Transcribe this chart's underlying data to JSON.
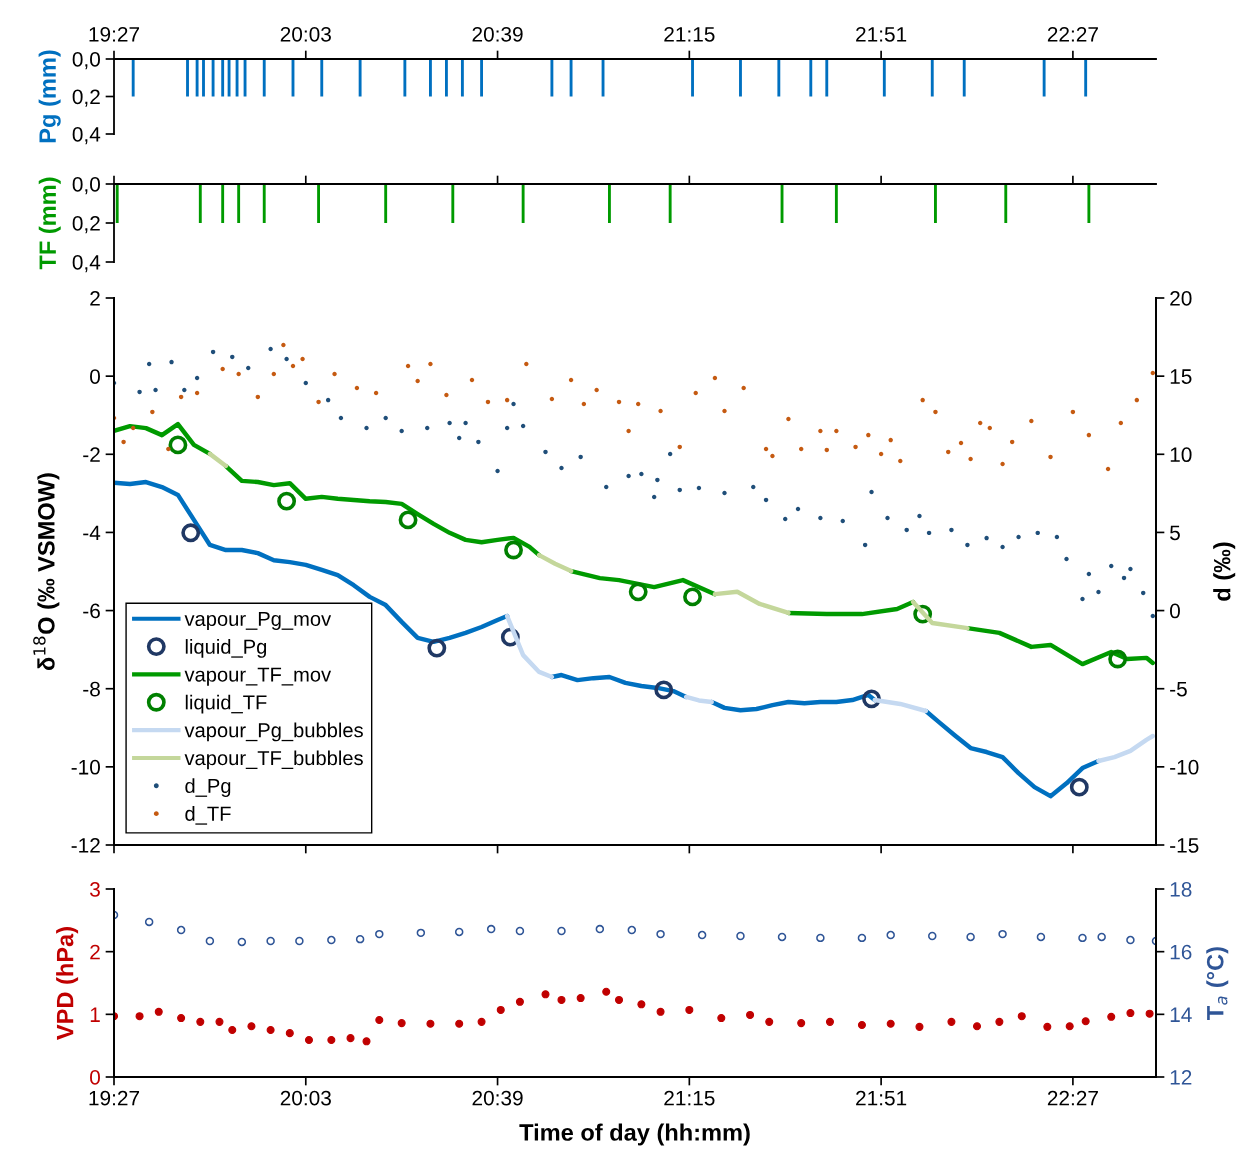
{
  "chart_data": [
    {
      "type": "bar",
      "ylabel": "Pg (mm)",
      "color": "#0070c0",
      "x": [
        19.51,
        19.68,
        19.71,
        19.73,
        19.76,
        19.79,
        19.81,
        19.835,
        19.86,
        19.92,
        20.01,
        20.1,
        20.22,
        20.36,
        20.44,
        20.49,
        20.54,
        20.6,
        20.82,
        20.88,
        20.98,
        21.26,
        21.41,
        21.53,
        21.63,
        21.68,
        21.86,
        22.01,
        22.11,
        22.36,
        22.49
      ],
      "values": [
        0.2,
        0.2,
        0.2,
        0.2,
        0.2,
        0.2,
        0.2,
        0.2,
        0.2,
        0.2,
        0.2,
        0.2,
        0.2,
        0.2,
        0.2,
        0.2,
        0.2,
        0.2,
        0.2,
        0.2,
        0.2,
        0.2,
        0.2,
        0.2,
        0.2,
        0.2,
        0.2,
        0.2,
        0.2,
        0.2,
        0.2
      ],
      "ylim": [
        0.4,
        0
      ],
      "yticks": [
        {
          "value": 0,
          "label": "0,0"
        },
        {
          "value": 0.2,
          "label": "0,2"
        },
        {
          "value": 0.4,
          "label": "0,4"
        }
      ],
      "xlim": [
        19.45,
        22.71
      ],
      "xticks": [
        {
          "value": 19.45,
          "label": "19:27"
        },
        {
          "value": 20.05,
          "label": "20:03"
        },
        {
          "value": 20.65,
          "label": "20:39"
        },
        {
          "value": 21.25,
          "label": "21:15"
        },
        {
          "value": 21.85,
          "label": "21:51"
        },
        {
          "value": 22.45,
          "label": "22:27"
        }
      ],
      "grid": false,
      "legend": false
    },
    {
      "type": "bar",
      "ylabel": "TF (mm)",
      "color": "#009a00",
      "x": [
        19.46,
        19.72,
        19.79,
        19.84,
        19.92,
        20.09,
        20.3,
        20.51,
        20.73,
        21.0,
        21.19,
        21.54,
        21.71,
        22.02,
        22.24,
        22.5
      ],
      "values": [
        0.2,
        0.2,
        0.2,
        0.2,
        0.2,
        0.2,
        0.2,
        0.2,
        0.2,
        0.2,
        0.2,
        0.2,
        0.2,
        0.2,
        0.2,
        0.2
      ],
      "ylim": [
        0.4,
        0
      ],
      "yticks": [
        {
          "value": 0,
          "label": "0,0"
        },
        {
          "value": 0.2,
          "label": "0,2"
        },
        {
          "value": 0.4,
          "label": "0,4"
        }
      ],
      "xlim": [
        19.45,
        22.71
      ],
      "xticks": [
        {
          "value": 19.45,
          "label": null
        },
        {
          "value": 20.05,
          "label": null
        },
        {
          "value": 20.65,
          "label": null
        },
        {
          "value": 21.25,
          "label": null
        },
        {
          "value": 21.85,
          "label": null
        },
        {
          "value": 22.45,
          "label": null
        }
      ],
      "tick_labels": "y",
      "grid": false,
      "legend": false
    },
    {
      "type": "line",
      "ylabel": "δ$^{18}$O (‰ VSMOW)",
      "y2label": "d (‰)",
      "xlim": [
        19.45,
        22.71
      ],
      "xticks": [
        {
          "value": 19.45,
          "label": null
        },
        {
          "value": 20.05,
          "label": null
        },
        {
          "value": 20.65,
          "label": null
        },
        {
          "value": 21.25,
          "label": null
        },
        {
          "value": 21.85,
          "label": null
        },
        {
          "value": 22.45,
          "label": null
        }
      ],
      "ylim": [
        -12,
        2
      ],
      "yticks": [
        -12,
        -10,
        -8,
        -6,
        -4,
        -2,
        0,
        2
      ],
      "y2lim": [
        -15,
        20
      ],
      "y2ticks": [
        -15,
        -10,
        -5,
        0,
        5,
        10,
        15,
        20
      ],
      "tick_labels": "y",
      "grid": false,
      "legend": "bottom left",
      "series": [
        {
          "name": "vapour_Pg_mov",
          "type": "line",
          "marker": "none",
          "line_style": "solid",
          "color": "#0070c0",
          "x": [
            19.45,
            19.5,
            19.55,
            19.6,
            19.65,
            19.7,
            19.75,
            19.8,
            19.85,
            19.9,
            19.95,
            20.0,
            20.05,
            20.1,
            20.15,
            20.2,
            20.25,
            20.3,
            20.35,
            20.4,
            20.45,
            20.5,
            20.55,
            20.6,
            20.65,
            20.68,
            20.75,
            20.82,
            20.85,
            20.9,
            20.95,
            21.0,
            21.05,
            21.1,
            21.15,
            21.2,
            21.24,
            21.28,
            21.32,
            21.36,
            21.41,
            21.46,
            21.51,
            21.56,
            21.61,
            21.66,
            21.71,
            21.76,
            21.81,
            21.83,
            21.9,
            21.99,
            22.03,
            22.08,
            22.13,
            22.18,
            22.23,
            22.28,
            22.33,
            22.38,
            22.43,
            22.48,
            22.53
          ],
          "values": [
            -2.73,
            -2.76,
            -2.71,
            -2.84,
            -3.04,
            -3.68,
            -4.32,
            -4.45,
            -4.45,
            -4.53,
            -4.71,
            -4.76,
            -4.83,
            -4.96,
            -5.09,
            -5.35,
            -5.65,
            -5.86,
            -6.29,
            -6.7,
            -6.8,
            -6.7,
            -6.57,
            -6.42,
            -6.24,
            -6.14,
            null,
            -7.7,
            -7.65,
            -7.78,
            -7.73,
            -7.7,
            -7.85,
            -7.93,
            -7.98,
            -8.06,
            -8.21,
            null,
            -8.34,
            -8.49,
            -8.55,
            -8.52,
            -8.42,
            -8.34,
            -8.37,
            -8.34,
            -8.34,
            -8.29,
            -8.16,
            -8.29,
            null,
            -8.57,
            -8.85,
            -9.19,
            -9.52,
            -9.62,
            -9.75,
            -10.16,
            -10.52,
            -10.75,
            -10.42,
            -10.03,
            -9.85
          ]
        },
        {
          "name": "liquid_Pg",
          "type": "scatter",
          "marker": "circle",
          "color": "#203864",
          "x": [
            19.69,
            20.46,
            20.69,
            21.17,
            21.82,
            22.47
          ],
          "values": [
            -4.01,
            -6.96,
            -6.68,
            -8.03,
            -8.26,
            -10.52
          ]
        },
        {
          "name": "vapour_TF_mov",
          "type": "line",
          "marker": "none",
          "line_style": "solid",
          "color": "#009a00",
          "x": [
            19.45,
            19.5,
            19.55,
            19.6,
            19.65,
            19.7,
            19.75,
            19.78,
            19.8,
            19.85,
            19.9,
            19.95,
            20.0,
            20.05,
            20.1,
            20.15,
            20.2,
            20.25,
            20.3,
            20.35,
            20.4,
            20.45,
            20.5,
            20.55,
            20.6,
            20.65,
            20.7,
            20.75,
            20.78,
            20.83,
            20.88,
            20.97,
            21.03,
            21.14,
            21.23,
            21.33,
            21.45,
            21.56,
            21.68,
            21.79,
            21.9,
            21.95,
            22.03,
            22.12,
            22.22,
            22.32,
            22.38,
            22.48,
            22.57,
            22.62,
            22.68,
            22.7
          ],
          "values": [
            -1.4,
            -1.28,
            -1.33,
            -1.51,
            -1.23,
            -1.76,
            -1.99,
            null,
            -2.3,
            -2.68,
            -2.71,
            -2.79,
            -2.74,
            -3.14,
            -3.09,
            -3.14,
            -3.17,
            -3.2,
            -3.22,
            -3.27,
            -3.53,
            -3.78,
            -4.01,
            -4.19,
            -4.25,
            -4.19,
            -4.14,
            -4.37,
            -4.58,
            null,
            -4.99,
            -5.17,
            -5.22,
            -5.4,
            -5.22,
            -5.58,
            null,
            -6.06,
            -6.09,
            -6.09,
            -5.96,
            -5.78,
            null,
            -6.45,
            -6.57,
            -6.93,
            -6.88,
            -7.37,
            -7.06,
            -7.24,
            -7.21,
            -7.34
          ]
        },
        {
          "name": "liquid_TF",
          "type": "scatter",
          "marker": "circle",
          "color": "#008000",
          "x": [
            19.65,
            19.99,
            20.37,
            20.7,
            21.09,
            21.26,
            21.98,
            22.59
          ],
          "values": [
            -1.76,
            -3.2,
            -3.68,
            -4.45,
            -5.52,
            -5.65,
            -6.09,
            -7.24
          ]
        },
        {
          "name": "vapour_Pg_bubbles",
          "type": "line",
          "marker": "none",
          "line_style": "solid",
          "color": "#c5d9f1",
          "x": [
            20.68,
            20.73,
            20.78,
            20.82,
            20.9,
            21.24,
            21.28,
            21.32,
            21.6,
            21.83,
            21.91,
            21.99,
            22.2,
            22.53,
            22.58,
            22.63,
            22.68,
            22.7
          ],
          "values": [
            -6.14,
            -7.14,
            -7.57,
            -7.7,
            null,
            -8.21,
            -8.3,
            -8.34,
            null,
            -8.29,
            -8.39,
            -8.57,
            null,
            -9.85,
            -9.75,
            -9.59,
            -9.31,
            -9.21
          ]
        },
        {
          "name": "vapour_TF_bubbles",
          "type": "line",
          "marker": "none",
          "line_style": "solid",
          "color": "#c4d79b",
          "x": [
            19.75,
            19.8,
            20.3,
            20.78,
            20.83,
            20.88,
            21.1,
            21.33,
            21.4,
            21.47,
            21.56,
            21.8,
            21.95,
            22.01,
            22.12
          ],
          "values": [
            -1.99,
            -2.3,
            null,
            -4.58,
            -4.8,
            -4.99,
            null,
            -5.58,
            -5.52,
            -5.83,
            -6.06,
            null,
            -5.78,
            -6.32,
            -6.45
          ]
        },
        {
          "name": "d_Pg",
          "type": "scatter",
          "marker": "circle",
          "axis": "y2",
          "color": "#1f4e79",
          "x": [
            19.45,
            19.53,
            19.56,
            19.58,
            19.63,
            19.67,
            19.71,
            19.76,
            19.82,
            19.87,
            19.94,
            19.99,
            20.05,
            20.12,
            20.16,
            20.24,
            20.3,
            20.35,
            20.43,
            20.5,
            20.53,
            20.55,
            20.59,
            20.65,
            20.68,
            20.7,
            20.73,
            20.8,
            20.85,
            20.91,
            20.99,
            21.06,
            21.1,
            21.14,
            21.15,
            21.19,
            21.22,
            21.28,
            21.36,
            21.45,
            21.49,
            21.55,
            21.59,
            21.66,
            21.73,
            21.8,
            21.82,
            21.87,
            21.93,
            21.97,
            22.0,
            22.07,
            22.12,
            22.18,
            22.23,
            22.28,
            22.34,
            22.4,
            22.43,
            22.48,
            22.5,
            22.53,
            22.57,
            22.61,
            22.63,
            22.67,
            22.7
          ],
          "values": [
            14.56,
            13.99,
            15.78,
            14.11,
            15.9,
            14.11,
            14.88,
            16.55,
            16.23,
            15.52,
            16.74,
            16.1,
            14.56,
            13.47,
            12.32,
            11.68,
            12.32,
            11.49,
            11.68,
            12.0,
            11.04,
            12.0,
            10.79,
            8.93,
            11.68,
            13.22,
            11.81,
            10.15,
            9.12,
            9.83,
            7.91,
            8.61,
            8.74,
            7.27,
            8.36,
            10.02,
            7.72,
            7.84,
            7.52,
            7.91,
            7.08,
            5.86,
            6.5,
            5.92,
            5.73,
            4.2,
            7.59,
            5.92,
            5.16,
            6.05,
            4.97,
            5.16,
            4.2,
            4.64,
            4.07,
            4.71,
            4.97,
            4.71,
            3.3,
            0.74,
            2.34,
            1.19,
            2.85,
            2.09,
            2.66,
            1.13,
            -0.35
          ]
        },
        {
          "name": "d_TF",
          "type": "scatter",
          "marker": "circle",
          "axis": "y2",
          "color": "#c55a11",
          "x": [
            19.45,
            19.48,
            19.51,
            19.57,
            19.62,
            19.66,
            19.71,
            19.79,
            19.84,
            19.9,
            19.95,
            19.98,
            20.01,
            20.04,
            20.09,
            20.14,
            20.21,
            20.27,
            20.37,
            20.4,
            20.44,
            20.49,
            20.57,
            20.62,
            20.68,
            20.74,
            20.82,
            20.88,
            20.92,
            20.96,
            21.03,
            21.06,
            21.09,
            21.16,
            21.22,
            21.27,
            21.33,
            21.36,
            21.42,
            21.49,
            21.51,
            21.56,
            21.6,
            21.66,
            21.68,
            21.71,
            21.77,
            21.81,
            21.85,
            21.88,
            21.91,
            21.98,
            22.02,
            22.06,
            22.1,
            22.13,
            22.16,
            22.19,
            22.23,
            22.26,
            22.32,
            22.38,
            22.45,
            22.5,
            22.56,
            22.6,
            22.65,
            22.7
          ],
          "values": [
            12.32,
            10.79,
            11.68,
            12.71,
            10.34,
            13.67,
            13.92,
            15.46,
            15.14,
            13.67,
            15.14,
            16.99,
            15.65,
            16.1,
            13.35,
            15.14,
            14.24,
            13.92,
            15.65,
            14.69,
            15.78,
            13.79,
            14.75,
            13.35,
            13.47,
            15.78,
            13.54,
            14.75,
            13.22,
            14.11,
            13.35,
            11.49,
            13.22,
            12.77,
            10.47,
            13.92,
            14.88,
            12.77,
            14.24,
            10.34,
            9.89,
            12.26,
            10.34,
            11.49,
            10.28,
            11.49,
            10.47,
            11.23,
            10.02,
            10.91,
            9.57,
            13.47,
            12.71,
            10.15,
            10.72,
            9.7,
            12.0,
            11.68,
            9.38,
            10.79,
            12.13,
            9.83,
            12.71,
            11.23,
            9.06,
            12.0,
            13.47,
            15.2
          ]
        }
      ]
    },
    {
      "type": "scatter",
      "ylabel": "VPD (hPa)",
      "y2label": "T$_{a}$ (°C)",
      "xlabel": "Time of day (hh:mm)",
      "xlim": [
        19.45,
        22.71
      ],
      "xticks": [
        {
          "value": 19.45,
          "label": "19:27"
        },
        {
          "value": 20.05,
          "label": "20:03"
        },
        {
          "value": 20.65,
          "label": "20:39"
        },
        {
          "value": 21.25,
          "label": "21:15"
        },
        {
          "value": 21.85,
          "label": "21:51"
        },
        {
          "value": 22.45,
          "label": "22:27"
        }
      ],
      "ylim": [
        0,
        3
      ],
      "yticks": [
        0,
        1,
        2,
        3
      ],
      "y2lim": [
        12,
        18
      ],
      "y2ticks": [
        12,
        14,
        16,
        18
      ],
      "grid": false,
      "legend": false,
      "series": [
        {
          "type": "scatter",
          "marker": "circle",
          "color": "#c00000",
          "x": [
            19.45,
            19.53,
            19.59,
            19.66,
            19.72,
            19.78,
            19.82,
            19.88,
            19.94,
            20.0,
            20.06,
            20.13,
            20.19,
            20.24,
            20.28,
            20.35,
            20.44,
            20.53,
            20.6,
            20.66,
            20.72,
            20.8,
            20.85,
            20.91,
            20.99,
            21.03,
            21.1,
            21.16,
            21.25,
            21.35,
            21.44,
            21.5,
            21.6,
            21.69,
            21.79,
            21.88,
            21.97,
            22.07,
            22.15,
            22.22,
            22.29,
            22.37,
            22.44,
            22.49,
            22.57,
            22.63,
            22.69
          ],
          "values": [
            0.97,
            0.97,
            1.04,
            0.94,
            0.88,
            0.88,
            0.75,
            0.81,
            0.75,
            0.7,
            0.59,
            0.59,
            0.62,
            0.57,
            0.91,
            0.86,
            0.85,
            0.85,
            0.88,
            1.07,
            1.2,
            1.32,
            1.23,
            1.26,
            1.36,
            1.23,
            1.16,
            1.04,
            1.07,
            0.94,
            0.99,
            0.88,
            0.86,
            0.88,
            0.83,
            0.85,
            0.8,
            0.88,
            0.81,
            0.88,
            0.97,
            0.8,
            0.81,
            0.89,
            0.96,
            1.02,
            1.01
          ]
        },
        {
          "type": "scatter",
          "marker": "circle",
          "axis": "y2",
          "color": "#2f5597",
          "x": [
            19.45,
            19.56,
            19.66,
            19.75,
            19.85,
            19.94,
            20.03,
            20.13,
            20.22,
            20.28,
            20.41,
            20.53,
            20.63,
            20.72,
            20.85,
            20.97,
            21.07,
            21.16,
            21.29,
            21.41,
            21.54,
            21.66,
            21.79,
            21.88,
            22.01,
            22.13,
            22.23,
            22.35,
            22.48,
            22.54,
            22.63,
            22.71
          ],
          "values": [
            17.17,
            16.95,
            16.69,
            16.34,
            16.31,
            16.34,
            16.34,
            16.37,
            16.4,
            16.56,
            16.6,
            16.63,
            16.72,
            16.66,
            16.66,
            16.72,
            16.69,
            16.56,
            16.53,
            16.5,
            16.47,
            16.44,
            16.44,
            16.53,
            16.5,
            16.47,
            16.56,
            16.47,
            16.44,
            16.47,
            16.37,
            16.34
          ]
        }
      ]
    }
  ]
}
